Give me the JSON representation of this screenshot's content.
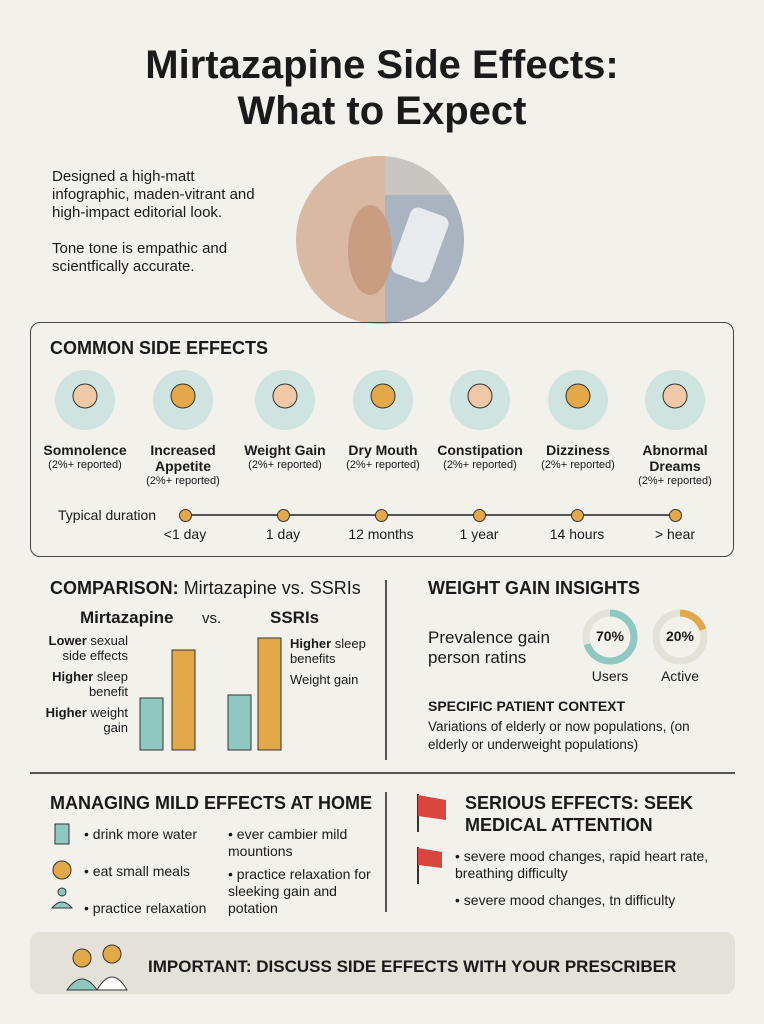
{
  "header": {
    "title": [
      "Mirtazapine Side Effects:",
      "What to Expect"
    ],
    "intro": [
      "Designed a high-matt infographic, maden-vitrant and high-impact editorial look.",
      "Tone tone is empathic and scientfically accurate."
    ]
  },
  "common": {
    "title": "COMMON SIDE EFFECTS",
    "effects": [
      {
        "name": "Somnolence",
        "note": "(2%+ reported)"
      },
      {
        "name": "Increased Appetite",
        "note": "(2%+ reported)"
      },
      {
        "name": "Weight Gain",
        "note": "(2%+ reported)"
      },
      {
        "name": "Dry Mouth",
        "note": "(2%+ reported)"
      },
      {
        "name": "Constipation",
        "note": "(2%+ reported)"
      },
      {
        "name": "Dizziness",
        "note": "(2%+ reported)"
      },
      {
        "name": "Abnormal Dreams",
        "note": "(2%+ reported)"
      }
    ],
    "duration_label": "Typical duration",
    "durations": [
      "<1 day",
      "1 day",
      "12 months",
      "1 year",
      "14 hours",
      "> hear"
    ]
  },
  "comparison": {
    "title_bold": "COMPARISON:",
    "title_rest": "Mirtazapine vs. SSRIs",
    "left": "Mirtazapine",
    "vs": "vs.",
    "right": "SSRIs",
    "left_notes": [
      {
        "bold": "Lower",
        "text": "sexual side effects"
      },
      {
        "bold": "Higher",
        "text": "sleep benefit"
      },
      {
        "bold": "Higher",
        "text": "weight gain"
      }
    ],
    "right_notes": [
      {
        "bold": "Higher",
        "text": "sleep benefits"
      },
      {
        "text": "Weight gain"
      }
    ]
  },
  "weight": {
    "title": "WEIGHT GAIN INSIGHTS",
    "prevalence": "Prevalence gain person ratins",
    "stats": [
      {
        "value": 70,
        "label": "70%",
        "caption": "Users",
        "color": "#8fc8c0"
      },
      {
        "value": 20,
        "label": "20%",
        "caption": "Active",
        "color": "#e2a84a"
      }
    ],
    "context_title": "SPECIFIC PATIENT CONTEXT",
    "context_text": "Variations of elderly or now populations, (on elderly or underweight populations)"
  },
  "managing": {
    "title": "MANAGING MILD EFFECTS AT HOME",
    "col1": [
      "drink more water",
      "eat small meals",
      "practice relaxation"
    ],
    "col2": [
      "ever cambier mild mountions",
      "practice relaxation for sleeking gain and potation"
    ]
  },
  "serious": {
    "title": "SERIOUS EFFECTS: SEEK MEDICAL ATTENTION",
    "items": [
      "severe mood changes, rapid heart rate, breathing difficulty",
      "severe mood changes, tn difficulty"
    ]
  },
  "footer": {
    "text": "IMPORTANT: DISCUSS SIDE EFFECTS WITH YOUR PRESCRIBER"
  }
}
